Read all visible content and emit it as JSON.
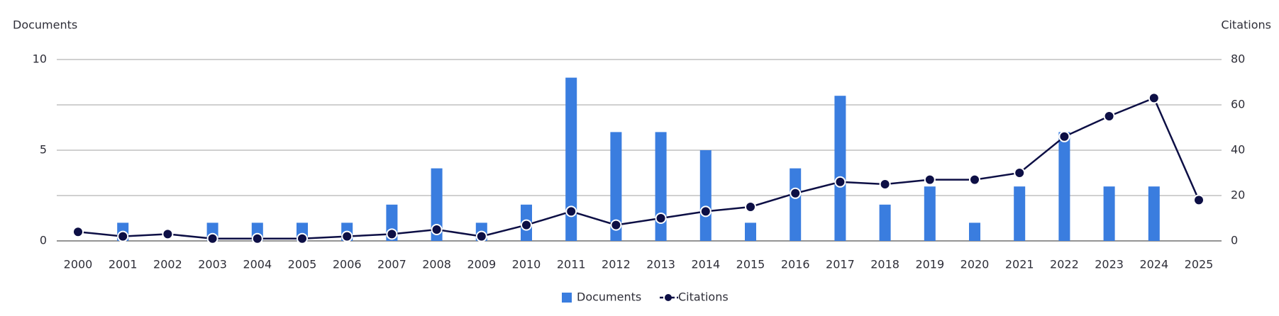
{
  "chart_data": {
    "type": "bar-line",
    "y_label": "Documents",
    "y2_label": "Citations",
    "categories": [
      "2000",
      "2001",
      "2002",
      "2003",
      "2004",
      "2005",
      "2006",
      "2007",
      "2008",
      "2009",
      "2010",
      "2011",
      "2012",
      "2013",
      "2014",
      "2015",
      "2016",
      "2017",
      "2018",
      "2019",
      "2020",
      "2021",
      "2022",
      "2023",
      "2024",
      "2025"
    ],
    "series": [
      {
        "name": "Documents",
        "color": "#3a7ddf",
        "values": [
          0,
          1,
          0,
          1,
          1,
          1,
          1,
          2,
          4,
          1,
          2,
          9,
          6,
          6,
          5,
          1,
          4,
          8,
          2,
          3,
          1,
          3,
          6,
          3,
          3,
          0
        ]
      },
      {
        "name": "Citations",
        "color": "#0d0f45",
        "axis": "y2",
        "values": [
          4,
          2,
          3,
          1,
          1,
          1,
          2,
          3,
          5,
          2,
          7,
          13,
          7,
          10,
          13,
          15,
          21,
          26,
          25,
          27,
          27,
          30,
          46,
          55,
          63,
          18
        ]
      }
    ],
    "ylim": [
      0,
      10
    ],
    "yticks": [
      0,
      5,
      10
    ],
    "y2lim": [
      0,
      80
    ],
    "y2ticks": [
      0,
      20,
      40,
      60,
      80
    ],
    "grid": true
  }
}
